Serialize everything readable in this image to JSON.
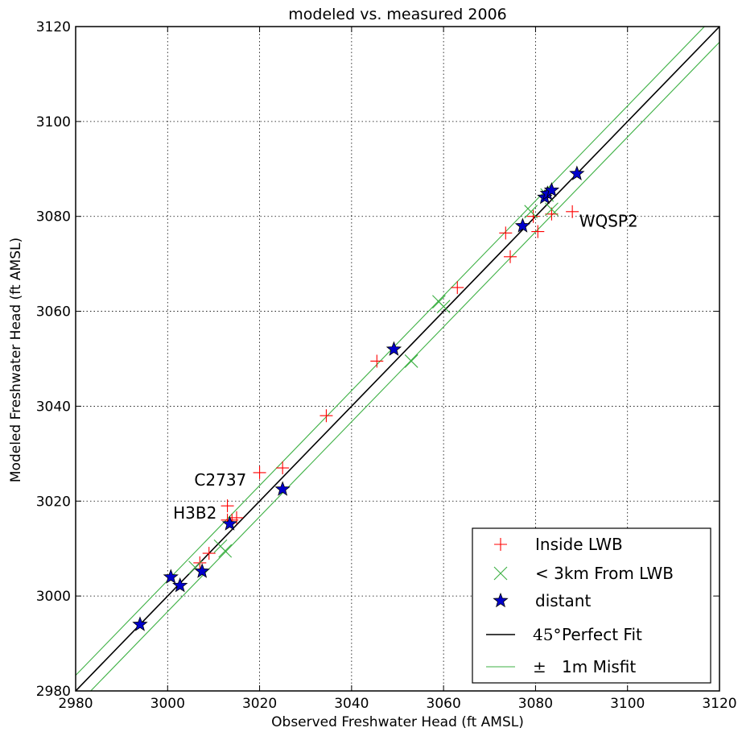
{
  "chart_data": {
    "type": "scatter",
    "title": "modeled vs. measured 2006",
    "xlabel": "Observed Freshwater Head (ft AMSL)",
    "ylabel": "Modeled Freshwater Head (ft AMSL)",
    "xlim": [
      2980,
      3120
    ],
    "ylim": [
      2980,
      3120
    ],
    "xticks": [
      2980,
      3000,
      3020,
      3040,
      3060,
      3080,
      3100,
      3120
    ],
    "yticks": [
      2980,
      3000,
      3020,
      3040,
      3060,
      3080,
      3100,
      3120
    ],
    "grid": true,
    "legend_position": "lower-right",
    "series": [
      {
        "name": "Inside LWB",
        "marker": "plus",
        "color": "#ff0000",
        "points": [
          [
            3007,
            3007
          ],
          [
            3009,
            3009
          ],
          [
            3013,
            3019
          ],
          [
            3013,
            3016
          ],
          [
            3014,
            3016
          ],
          [
            3015,
            3016.5
          ],
          [
            3020,
            3026
          ],
          [
            3025,
            3027
          ],
          [
            3034.5,
            3038
          ],
          [
            3045.5,
            3049.5
          ],
          [
            3063,
            3065
          ],
          [
            3073.5,
            3076.5
          ],
          [
            3074.5,
            3071.5
          ],
          [
            3079.5,
            3080
          ],
          [
            3080.5,
            3076.8
          ],
          [
            3083.5,
            3080.5
          ],
          [
            3088,
            3081
          ]
        ]
      },
      {
        "name": "< 3km From LWB",
        "marker": "x",
        "color": "#3cb043",
        "points": [
          [
            3006,
            3006
          ],
          [
            3011.5,
            3010.5
          ],
          [
            3012.5,
            3009.5
          ],
          [
            3059,
            3062
          ],
          [
            3060,
            3061
          ],
          [
            3053,
            3049.5
          ],
          [
            3079,
            3081
          ],
          [
            3083.5,
            3081.5
          ],
          [
            3082.5,
            3084.5
          ]
        ]
      },
      {
        "name": "distant",
        "marker": "star",
        "color": "#0000cc",
        "points": [
          [
            2994,
            2994
          ],
          [
            3000.7,
            3004
          ],
          [
            3002.7,
            3002.2
          ],
          [
            3007.5,
            3005.2
          ],
          [
            3013.5,
            3015.2
          ],
          [
            3025,
            3022.5
          ],
          [
            3049.2,
            3052
          ],
          [
            3077.2,
            3078
          ],
          [
            3082,
            3084
          ],
          [
            3082.6,
            3084.8
          ],
          [
            3083.5,
            3085.5
          ],
          [
            3089,
            3089
          ]
        ]
      }
    ],
    "lines": [
      {
        "name": "45° Perfect Fit",
        "color": "#000000",
        "x": [
          2980,
          3120
        ],
        "y": [
          2980,
          3120
        ]
      },
      {
        "name": "± 1m Misfit",
        "color": "#3cb043",
        "x": [
          2980,
          3120
        ],
        "y": [
          2983.28,
          3123.28
        ]
      },
      {
        "name": "± 1m Misfit",
        "color": "#3cb043",
        "x": [
          2980,
          3120
        ],
        "y": [
          2976.72,
          3116.72
        ]
      }
    ],
    "annotations": [
      {
        "text": "WQSP2",
        "x": 3089.5,
        "y": 3079
      },
      {
        "text": "C2737",
        "x": 3005.8,
        "y": 3024.5
      },
      {
        "text": "H3B2",
        "x": 3001.2,
        "y": 3017.5
      }
    ],
    "legend": [
      {
        "label": "Inside LWB",
        "marker": "plus",
        "color": "#ff0000"
      },
      {
        "label": "< 3km From LWB",
        "marker": "x",
        "color": "#3cb043"
      },
      {
        "label": "distant",
        "marker": "star",
        "color": "#0000cc"
      },
      {
        "label": "Perfect Fit",
        "prefix": "45°",
        "marker": "line",
        "color": "#000000"
      },
      {
        "label": "1m Misfit",
        "prefix": "±",
        "marker": "line",
        "color": "#3cb043"
      }
    ]
  }
}
